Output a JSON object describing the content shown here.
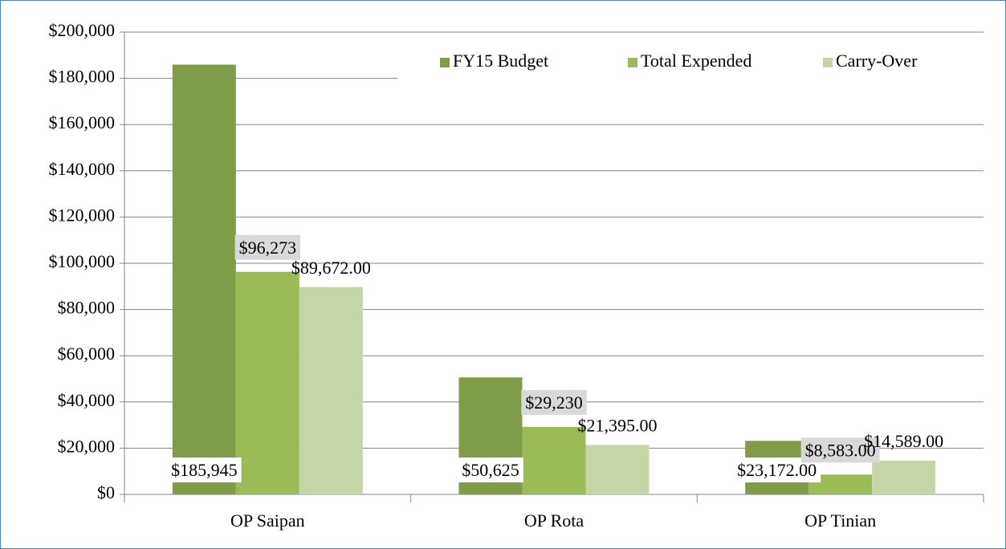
{
  "chart_data": {
    "type": "bar",
    "categories": [
      "OP Saipan",
      "OP Rota",
      "OP Tinian"
    ],
    "series": [
      {
        "name": "FY15 Budget",
        "color": "#7f9c48",
        "values": [
          185945,
          50625,
          23172
        ],
        "value_labels": [
          "$185,945",
          "$50,625",
          "$23,172.00"
        ]
      },
      {
        "name": "Total Expended",
        "color": "#9bbb59",
        "values": [
          96273,
          29230,
          8583
        ],
        "value_labels": [
          "$96,273",
          "$29,230",
          "$8,583.00"
        ]
      },
      {
        "name": "Carry-Over",
        "color": "#c4d6a6",
        "values": [
          89672,
          21395,
          14589
        ],
        "value_labels": [
          "$89,672.00",
          "$21,395.00",
          "$14,589.00"
        ]
      }
    ],
    "ylim": [
      0,
      200000
    ],
    "yticks": [
      {
        "value": 0,
        "label": "$0"
      },
      {
        "value": 20000,
        "label": "$20,000"
      },
      {
        "value": 40000,
        "label": "$40,000"
      },
      {
        "value": 60000,
        "label": "$60,000"
      },
      {
        "value": 80000,
        "label": "$80,000"
      },
      {
        "value": 100000,
        "label": "$100,000"
      },
      {
        "value": 120000,
        "label": "$120,000"
      },
      {
        "value": 140000,
        "label": "$140,000"
      },
      {
        "value": 160000,
        "label": "$160,000"
      },
      {
        "value": 180000,
        "label": "$180,000"
      },
      {
        "value": 200000,
        "label": "$200,000"
      }
    ],
    "grid": true,
    "legend": "top-right"
  }
}
